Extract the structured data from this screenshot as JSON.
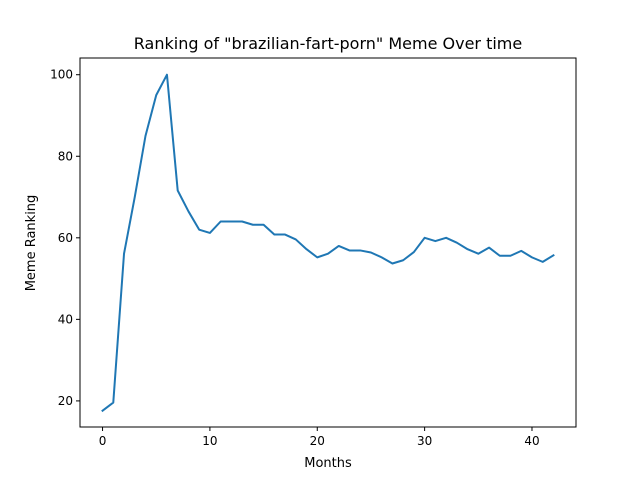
{
  "chart_data": {
    "type": "line",
    "title": "Ranking of \"brazilian-fart-porn\" Meme Over time",
    "xlabel": "Months",
    "ylabel": "Meme Ranking",
    "xlim": [
      -2.1,
      44.1
    ],
    "ylim": [
      13.6,
      104.1
    ],
    "xticks": [
      "0",
      "10",
      "20",
      "30",
      "40"
    ],
    "yticks": [
      "20",
      "40",
      "60",
      "80",
      "100"
    ],
    "grid": false,
    "legend": "none",
    "line_color": "#1f77b4",
    "series": [
      {
        "x": [
          0,
          1,
          2,
          3,
          4,
          5,
          6,
          7,
          8,
          9,
          10,
          11,
          12,
          13,
          14,
          15,
          16,
          17,
          18,
          19,
          20,
          21,
          22,
          23,
          24,
          25,
          26,
          27,
          28,
          29,
          30,
          31,
          32,
          33,
          34,
          35,
          36,
          37,
          38,
          39,
          40,
          41,
          42
        ],
        "values": [
          17.6,
          19.6,
          56.1,
          70.0,
          85.0,
          95.0,
          100.0,
          71.6,
          66.5,
          62.0,
          61.2,
          64.0,
          64.0,
          64.0,
          63.2,
          63.2,
          60.8,
          60.8,
          59.6,
          57.2,
          55.2,
          56.1,
          58.0,
          56.9,
          56.9,
          56.4,
          55.2,
          53.7,
          54.5,
          56.5,
          60.0,
          59.2,
          60.0,
          58.8,
          57.2,
          56.1,
          57.6,
          55.6,
          55.6,
          56.8,
          55.2,
          54.1,
          55.7
        ]
      }
    ]
  }
}
